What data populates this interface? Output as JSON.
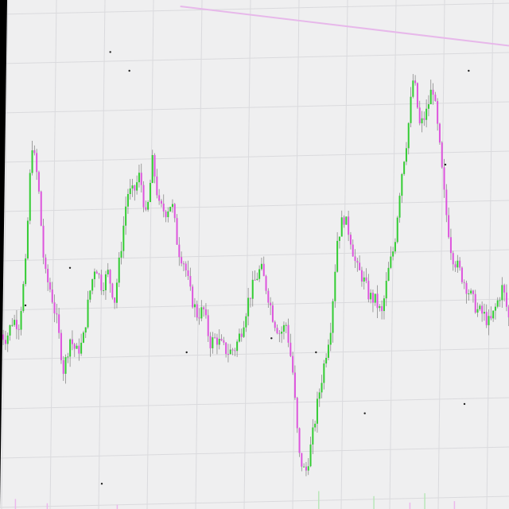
{
  "colors": {
    "background": "#efeff0",
    "edge": "#000000",
    "grid": "#dadadd",
    "up": "#33cc33",
    "down": "#dd55dd",
    "wick": "#8a8a8a",
    "trendline": "#e7b8ea",
    "volume_up": "#b9e6b9",
    "volume_down": "#ecb8ec",
    "marker": "#222222"
  },
  "chart_data": {
    "type": "candlestick",
    "title": "",
    "xlabel": "",
    "ylabel": "",
    "x_range": [
      0,
      240
    ],
    "ylim": [
      0,
      100
    ],
    "grid": true,
    "legend": "none",
    "anchors": [
      [
        0,
        34
      ],
      [
        3,
        33
      ],
      [
        6,
        37
      ],
      [
        9,
        36
      ],
      [
        12,
        48
      ],
      [
        15,
        75
      ],
      [
        18,
        66
      ],
      [
        21,
        47
      ],
      [
        24,
        43
      ],
      [
        27,
        36
      ],
      [
        30,
        26
      ],
      [
        33,
        33
      ],
      [
        36,
        30
      ],
      [
        39,
        32
      ],
      [
        42,
        42
      ],
      [
        45,
        49
      ],
      [
        48,
        44
      ],
      [
        51,
        47
      ],
      [
        54,
        41
      ],
      [
        57,
        52
      ],
      [
        60,
        64
      ],
      [
        63,
        64
      ],
      [
        66,
        68
      ],
      [
        69,
        58
      ],
      [
        72,
        71
      ],
      [
        75,
        61
      ],
      [
        78,
        60
      ],
      [
        81,
        62
      ],
      [
        84,
        52
      ],
      [
        87,
        49
      ],
      [
        90,
        42
      ],
      [
        93,
        38
      ],
      [
        96,
        39
      ],
      [
        99,
        32
      ],
      [
        102,
        33
      ],
      [
        105,
        31
      ],
      [
        108,
        30
      ],
      [
        111,
        31
      ],
      [
        114,
        35
      ],
      [
        117,
        41
      ],
      [
        120,
        45
      ],
      [
        123,
        48
      ],
      [
        126,
        43
      ],
      [
        129,
        37
      ],
      [
        132,
        34
      ],
      [
        135,
        36
      ],
      [
        138,
        26
      ],
      [
        141,
        8
      ],
      [
        144,
        4
      ],
      [
        147,
        11
      ],
      [
        150,
        20
      ],
      [
        153,
        28
      ],
      [
        156,
        36
      ],
      [
        159,
        54
      ],
      [
        162,
        59
      ],
      [
        165,
        55
      ],
      [
        168,
        48
      ],
      [
        171,
        46
      ],
      [
        174,
        42
      ],
      [
        177,
        41
      ],
      [
        180,
        38
      ],
      [
        183,
        47
      ],
      [
        186,
        53
      ],
      [
        189,
        67
      ],
      [
        192,
        76
      ],
      [
        195,
        89
      ],
      [
        198,
        78
      ],
      [
        201,
        81
      ],
      [
        204,
        87
      ],
      [
        207,
        75
      ],
      [
        210,
        61
      ],
      [
        213,
        51
      ],
      [
        216,
        48
      ],
      [
        219,
        45
      ],
      [
        222,
        42
      ],
      [
        225,
        39
      ],
      [
        228,
        38
      ],
      [
        231,
        36
      ],
      [
        234,
        40
      ],
      [
        237,
        44
      ],
      [
        240,
        37
      ]
    ],
    "trendline": [
      [
        85,
        100
      ],
      [
        240,
        95
      ]
    ],
    "volume_ylim": [
      0,
      100
    ],
    "volume_bars": [
      [
        7,
        14
      ],
      [
        22,
        8
      ],
      [
        55,
        6
      ],
      [
        150,
        25
      ],
      [
        176,
        18
      ],
      [
        193,
        9
      ],
      [
        200,
        22
      ],
      [
        214,
        11
      ]
    ],
    "markers": [
      [
        52,
        94
      ],
      [
        61,
        90
      ],
      [
        33,
        48
      ],
      [
        88,
        30
      ],
      [
        128,
        33
      ],
      [
        149,
        30
      ],
      [
        172,
        17
      ],
      [
        221,
        90
      ],
      [
        210,
        70
      ],
      [
        219,
        19
      ],
      [
        48,
        2
      ],
      [
        12,
        40
      ]
    ]
  }
}
